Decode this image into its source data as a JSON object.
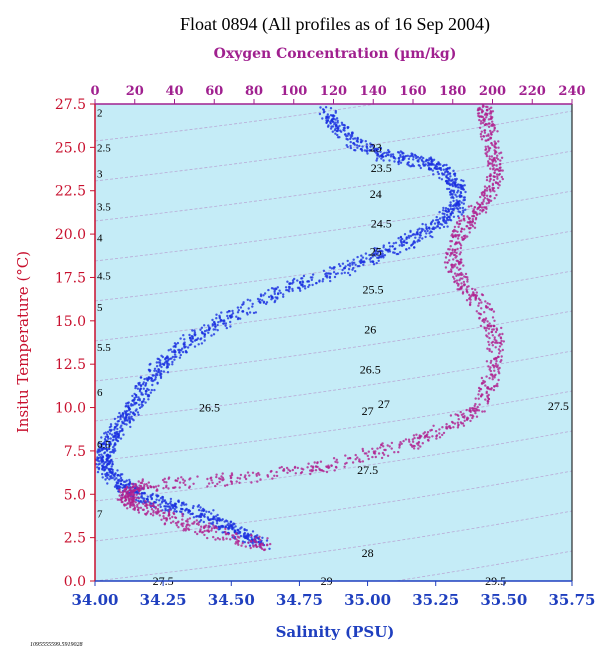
{
  "chart_data": {
    "type": "scatter",
    "title": "Float 0894  (All profiles as of 16 Sep 2004)",
    "footnote": "1095555599.5919028",
    "x_axis": {
      "label": "Salinity (PSU)",
      "range": [
        34.0,
        35.75
      ],
      "ticks": [
        "34.00",
        "34.25",
        "34.50",
        "34.75",
        "35.00",
        "35.25",
        "35.50",
        "35.75"
      ],
      "color": "#1f3fbf"
    },
    "x2_axis": {
      "label": "Oxygen Concentration (µm/kg)",
      "range": [
        0,
        240
      ],
      "ticks": [
        "0",
        "20",
        "40",
        "60",
        "80",
        "100",
        "120",
        "140",
        "160",
        "180",
        "200",
        "220",
        "240"
      ],
      "color": "#a0208f"
    },
    "y_axis": {
      "label": "Insitu Temperature (°C)",
      "range": [
        0.0,
        27.5
      ],
      "ticks": [
        "0.0",
        "2.5",
        "5.0",
        "7.5",
        "10.0",
        "12.5",
        "15.0",
        "17.5",
        "20.0",
        "22.5",
        "25.0",
        "27.5"
      ],
      "color": "#c8102e"
    },
    "isopycnals": [
      {
        "label": "23",
        "s": 35.03,
        "t": 25.0
      },
      {
        "label": "23.5",
        "s": 35.05,
        "t": 23.8
      },
      {
        "label": "24",
        "s": 35.03,
        "t": 22.3
      },
      {
        "label": "24.5",
        "s": 35.05,
        "t": 20.6
      },
      {
        "label": "25",
        "s": 35.03,
        "t": 19.0
      },
      {
        "label": "25.5",
        "s": 35.02,
        "t": 16.8
      },
      {
        "label": "26",
        "s": 35.01,
        "t": 14.5
      },
      {
        "label": "26.5",
        "s": 35.01,
        "t": 12.2
      },
      {
        "label": "27",
        "s": 35.0,
        "t": 9.8
      },
      {
        "label": "27.5",
        "s": 35.0,
        "t": 6.4
      },
      {
        "label": "28",
        "s": 35.0,
        "t": 1.6
      },
      {
        "label": "26.5",
        "s": 34.42,
        "t": 10.0
      },
      {
        "label": "27",
        "s": 35.06,
        "t": 10.2
      },
      {
        "label": "27.5",
        "s": 35.7,
        "t": 10.1
      },
      {
        "label": "27.5",
        "s": 34.25,
        "t": 0.0
      },
      {
        "label": "29",
        "s": 34.85,
        "t": 0.0
      },
      {
        "label": "29.5",
        "s": 35.47,
        "t": 0.0
      }
    ],
    "oxygen_reference_labels": [
      {
        "label": "2",
        "t": 27.0
      },
      {
        "label": "2.5",
        "t": 25.0
      },
      {
        "label": "3",
        "t": 23.5
      },
      {
        "label": "3.5",
        "t": 21.6
      },
      {
        "label": "4",
        "t": 19.8
      },
      {
        "label": "4.5",
        "t": 17.6
      },
      {
        "label": "5",
        "t": 15.8
      },
      {
        "label": "5.5",
        "t": 13.5
      },
      {
        "label": "6",
        "t": 10.9
      },
      {
        "label": "6.5",
        "t": 7.9
      },
      {
        "label": "7",
        "t": 3.9
      }
    ],
    "series": [
      {
        "name": "Salinity",
        "axis": "x",
        "color": "#1a2fe0",
        "path": [
          [
            34.62,
            2.1
          ],
          [
            34.55,
            2.6
          ],
          [
            34.48,
            3.2
          ],
          [
            34.4,
            3.8
          ],
          [
            34.3,
            4.3
          ],
          [
            34.2,
            4.7
          ],
          [
            34.13,
            5.2
          ],
          [
            34.08,
            5.8
          ],
          [
            34.04,
            6.5
          ],
          [
            34.03,
            7.2
          ],
          [
            34.05,
            7.9
          ],
          [
            34.08,
            8.7
          ],
          [
            34.12,
            9.6
          ],
          [
            34.16,
            10.5
          ],
          [
            34.2,
            11.6
          ],
          [
            34.25,
            12.6
          ],
          [
            34.32,
            13.6
          ],
          [
            34.42,
            14.6
          ],
          [
            34.55,
            15.7
          ],
          [
            34.7,
            16.8
          ],
          [
            34.85,
            17.6
          ],
          [
            34.98,
            18.4
          ],
          [
            35.1,
            19.2
          ],
          [
            35.2,
            20.0
          ],
          [
            35.28,
            20.8
          ],
          [
            35.33,
            21.6
          ],
          [
            35.33,
            22.6
          ],
          [
            35.3,
            23.4
          ],
          [
            35.24,
            24.0
          ],
          [
            35.15,
            24.3
          ],
          [
            35.05,
            24.6
          ],
          [
            34.95,
            25.3
          ],
          [
            34.88,
            26.3
          ],
          [
            34.85,
            27.0
          ]
        ],
        "spread": [
          0.03,
          0.35
        ]
      },
      {
        "name": "Oxygen",
        "axis": "x2",
        "color": "#b0208f",
        "path": [
          [
            85,
            2.1
          ],
          [
            65,
            2.6
          ],
          [
            45,
            3.3
          ],
          [
            28,
            4.1
          ],
          [
            18,
            4.6
          ],
          [
            15,
            5.0
          ],
          [
            25,
            5.5
          ],
          [
            60,
            5.8
          ],
          [
            100,
            6.3
          ],
          [
            130,
            7.0
          ],
          [
            160,
            8.0
          ],
          [
            180,
            9.0
          ],
          [
            195,
            10.2
          ],
          [
            200,
            12.0
          ],
          [
            202,
            14.0
          ],
          [
            195,
            15.8
          ],
          [
            185,
            17.0
          ],
          [
            180,
            18.5
          ],
          [
            183,
            20.0
          ],
          [
            190,
            21.0
          ],
          [
            198,
            22.3
          ],
          [
            202,
            23.5
          ],
          [
            200,
            25.0
          ],
          [
            197,
            26.5
          ],
          [
            196,
            27.2
          ]
        ],
        "spread": [
          4,
          0.35
        ]
      }
    ]
  }
}
